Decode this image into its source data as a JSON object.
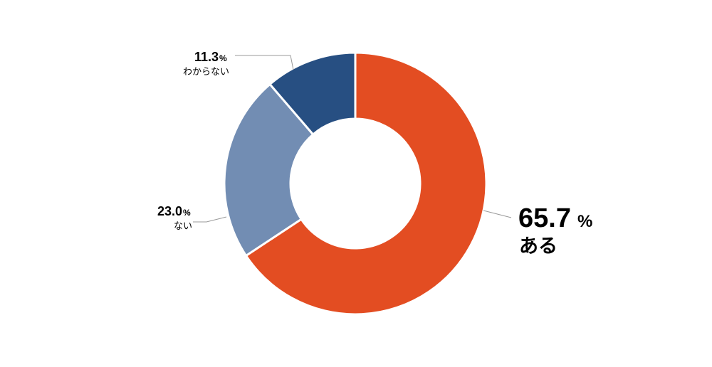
{
  "chart_data": {
    "type": "pie",
    "donut": true,
    "unit": "%",
    "slices": [
      {
        "label": "ある",
        "value": 65.7,
        "display": "65.7",
        "color": "#e34d22"
      },
      {
        "label": "ない",
        "value": 23.0,
        "display": "23.0",
        "color": "#728db3"
      },
      {
        "label": "わからない",
        "value": 11.3,
        "display": "11.3",
        "color": "#274f82"
      }
    ],
    "start_angle": "12 o'clock",
    "direction": "clockwise",
    "legend": "none"
  }
}
